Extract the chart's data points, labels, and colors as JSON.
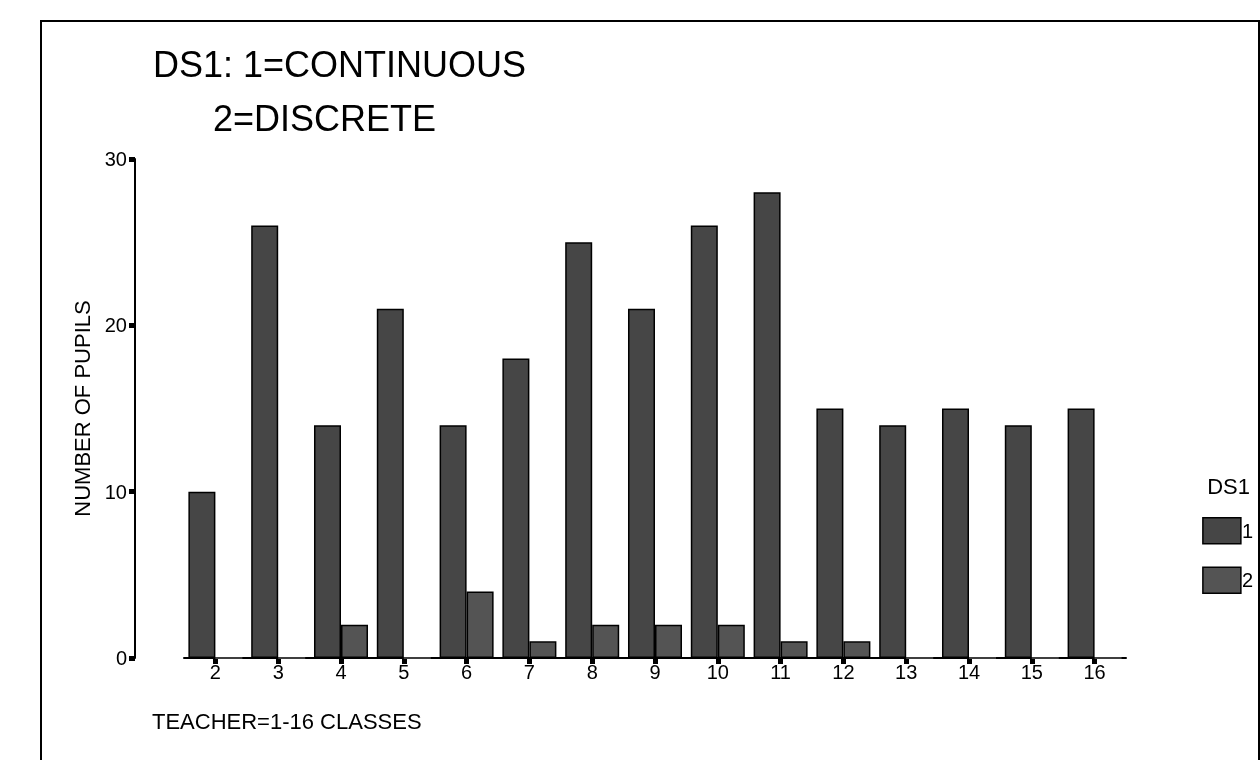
{
  "chart_data": {
    "type": "bar",
    "title": "DS1: 1=CONTINUOUS\n      2=DISCRETE",
    "xlabel": "TEACHER=1-16 CLASSES",
    "ylabel": "NUMBER OF PUPILS",
    "legend_title": "DS1",
    "categories": [
      "2",
      "3",
      "4",
      "5",
      "6",
      "7",
      "8",
      "9",
      "10",
      "11",
      "12",
      "13",
      "14",
      "15",
      "16"
    ],
    "series": [
      {
        "name": "1",
        "color": "#464646",
        "values": [
          10,
          26,
          14,
          21,
          14,
          18,
          25,
          21,
          26,
          28,
          15,
          14,
          15,
          14,
          15
        ]
      },
      {
        "name": "2",
        "color": "#545454",
        "values": [
          0,
          0,
          2,
          0,
          4,
          1,
          2,
          2,
          2,
          1,
          1,
          0,
          0,
          0,
          0
        ]
      }
    ],
    "ylim": [
      0,
      30
    ],
    "yticks": [
      0,
      10,
      20,
      30
    ],
    "grid": false,
    "legend": "right"
  }
}
